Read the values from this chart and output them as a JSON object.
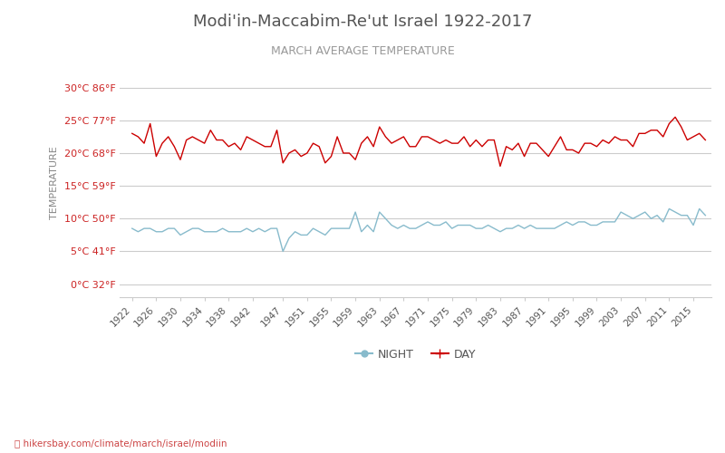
{
  "title": "Modi'in-Maccabim-Re'ut Israel 1922-2017",
  "subtitle": "MARCH AVERAGE TEMPERATURE",
  "ylabel": "TEMPERATURE",
  "xlabel_url": "hikersbay.com/climate/march/israel/modiin",
  "background_color": "#ffffff",
  "plot_bg_color": "#ffffff",
  "grid_color": "#cccccc",
  "title_color": "#555555",
  "subtitle_color": "#888888",
  "day_color": "#cc0000",
  "night_color": "#88bbcc",
  "yticks_celsius": [
    0,
    5,
    10,
    15,
    20,
    25,
    30
  ],
  "yticks_fahrenheit": [
    32,
    41,
    50,
    59,
    68,
    77,
    86
  ],
  "ylim_celsius": [
    -2,
    33
  ],
  "xlim": [
    1920,
    2018
  ],
  "xticks": [
    1922,
    1926,
    1930,
    1934,
    1938,
    1942,
    1947,
    1951,
    1955,
    1959,
    1963,
    1967,
    1971,
    1975,
    1979,
    1983,
    1987,
    1991,
    1995,
    1999,
    2003,
    2007,
    2011,
    2015
  ],
  "years": [
    1922,
    1923,
    1924,
    1925,
    1926,
    1927,
    1928,
    1929,
    1930,
    1931,
    1932,
    1933,
    1934,
    1935,
    1936,
    1937,
    1938,
    1939,
    1940,
    1941,
    1942,
    1943,
    1944,
    1945,
    1946,
    1947,
    1948,
    1949,
    1950,
    1951,
    1952,
    1953,
    1954,
    1955,
    1956,
    1957,
    1958,
    1959,
    1960,
    1961,
    1962,
    1963,
    1964,
    1965,
    1966,
    1967,
    1968,
    1969,
    1970,
    1971,
    1972,
    1973,
    1974,
    1975,
    1976,
    1977,
    1978,
    1979,
    1980,
    1981,
    1982,
    1983,
    1984,
    1985,
    1986,
    1987,
    1988,
    1989,
    1990,
    1991,
    1992,
    1993,
    1994,
    1995,
    1996,
    1997,
    1998,
    1999,
    2000,
    2001,
    2002,
    2003,
    2004,
    2005,
    2006,
    2007,
    2008,
    2009,
    2010,
    2011,
    2012,
    2013,
    2014,
    2015,
    2016,
    2017
  ],
  "day_temps": [
    23.0,
    22.5,
    21.5,
    24.5,
    19.5,
    21.5,
    22.5,
    21.0,
    19.0,
    22.0,
    22.5,
    22.0,
    21.5,
    23.5,
    22.0,
    22.0,
    21.0,
    21.5,
    20.5,
    22.5,
    22.0,
    21.5,
    21.0,
    21.0,
    23.5,
    18.5,
    20.0,
    20.5,
    19.5,
    20.0,
    21.5,
    21.0,
    18.5,
    19.5,
    22.5,
    20.0,
    20.0,
    19.0,
    21.5,
    22.5,
    21.0,
    24.0,
    22.5,
    21.5,
    22.0,
    22.5,
    21.0,
    21.0,
    22.5,
    22.5,
    22.0,
    21.5,
    22.0,
    21.5,
    21.5,
    22.5,
    21.0,
    22.0,
    21.0,
    22.0,
    22.0,
    18.0,
    21.0,
    20.5,
    21.5,
    19.5,
    21.5,
    21.5,
    20.5,
    19.5,
    21.0,
    22.5,
    20.5,
    20.5,
    20.0,
    21.5,
    21.5,
    21.0,
    22.0,
    21.5,
    22.5,
    22.0,
    22.0,
    21.0,
    23.0,
    23.0,
    23.5,
    23.5,
    22.5,
    24.5,
    25.5,
    24.0,
    22.0,
    22.5,
    23.0,
    22.0
  ],
  "night_temps": [
    8.5,
    8.0,
    8.5,
    8.5,
    8.0,
    8.0,
    8.5,
    8.5,
    7.5,
    8.0,
    8.5,
    8.5,
    8.0,
    8.0,
    8.0,
    8.5,
    8.0,
    8.0,
    8.0,
    8.5,
    8.0,
    8.5,
    8.0,
    8.5,
    8.5,
    5.0,
    7.0,
    8.0,
    7.5,
    7.5,
    8.5,
    8.0,
    7.5,
    8.5,
    8.5,
    8.5,
    8.5,
    11.0,
    8.0,
    9.0,
    8.0,
    11.0,
    10.0,
    9.0,
    8.5,
    9.0,
    8.5,
    8.5,
    9.0,
    9.5,
    9.0,
    9.0,
    9.5,
    8.5,
    9.0,
    9.0,
    9.0,
    8.5,
    8.5,
    9.0,
    8.5,
    8.0,
    8.5,
    8.5,
    9.0,
    8.5,
    9.0,
    8.5,
    8.5,
    8.5,
    8.5,
    9.0,
    9.5,
    9.0,
    9.5,
    9.5,
    9.0,
    9.0,
    9.5,
    9.5,
    9.5,
    11.0,
    10.5,
    10.0,
    10.5,
    11.0,
    10.0,
    10.5,
    9.5,
    11.5,
    11.0,
    10.5,
    10.5,
    9.0,
    11.5,
    10.5
  ]
}
